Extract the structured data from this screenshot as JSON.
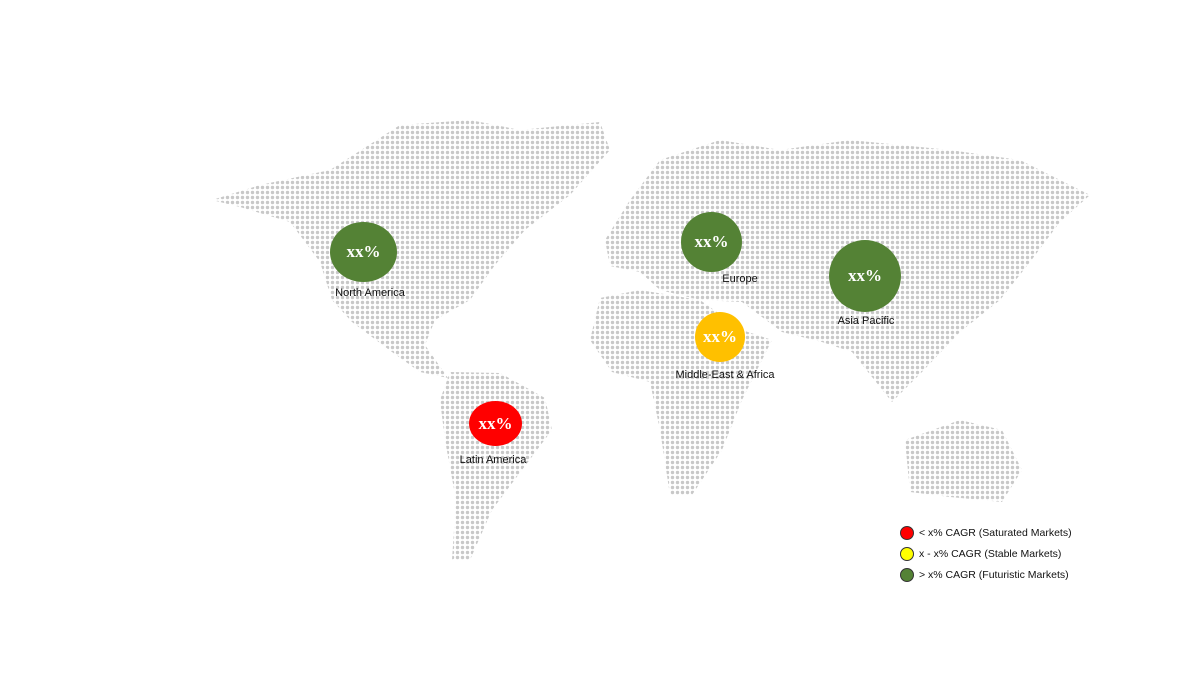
{
  "regions": [
    {
      "name": "North America",
      "value": "xx%",
      "color": "#548235",
      "category": "futuristic"
    },
    {
      "name": "Europe",
      "value": "xx%",
      "color": "#548235",
      "category": "futuristic"
    },
    {
      "name": "Asia Pacific",
      "value": "xx%",
      "color": "#548235",
      "category": "futuristic"
    },
    {
      "name": "Middle-East & Africa",
      "value": "xx%",
      "color": "#FFC000",
      "category": "stable"
    },
    {
      "name": "Latin America",
      "value": "xx%",
      "color": "#FF0000",
      "category": "saturated"
    }
  ],
  "legend": [
    {
      "label": "< x% CAGR (Saturated Markets)",
      "color": "#FF0000"
    },
    {
      "label": "x - x% CAGR (Stable Markets)",
      "color": "#FFFF00"
    },
    {
      "label": "> x% CAGR (Futuristic Markets)",
      "color": "#548235"
    }
  ],
  "map_dot_color": "#c8c8c8"
}
